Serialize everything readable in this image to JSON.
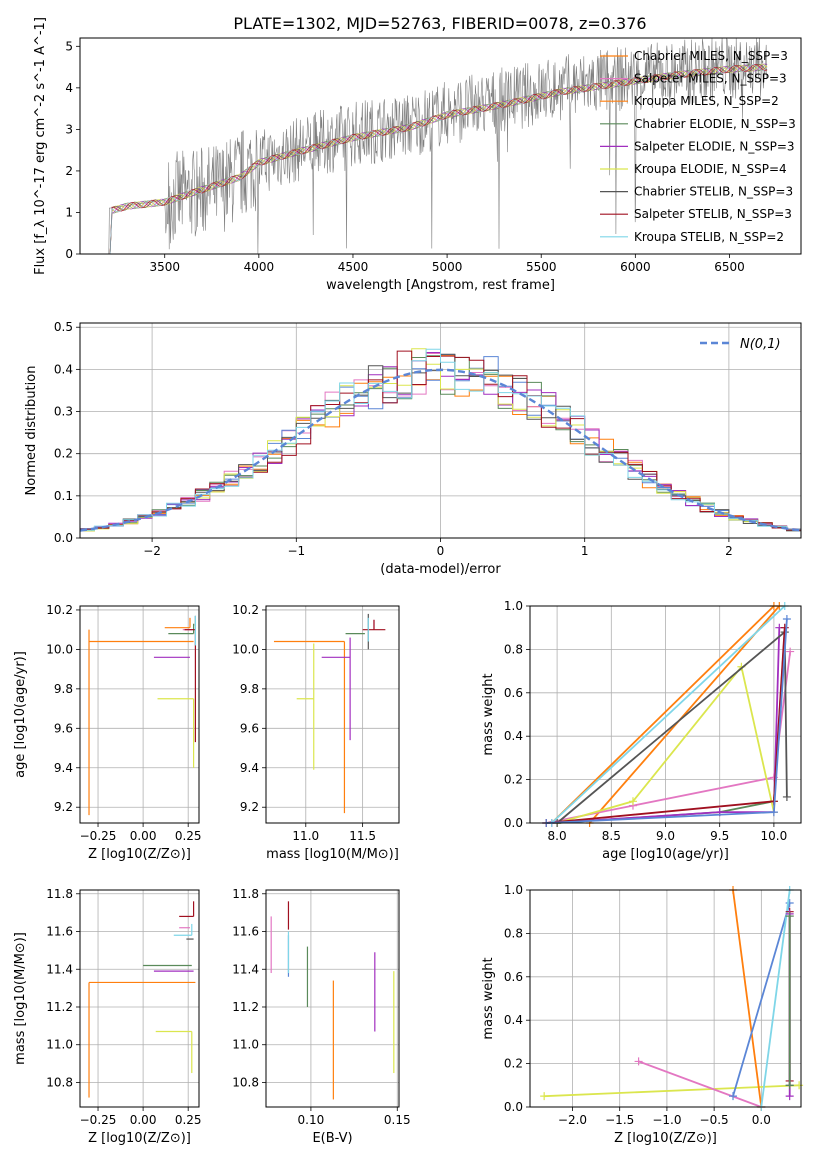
{
  "figure": {
    "title": "PLATE=1302, MJD=52763, FIBERID=0078, z=0.376"
  },
  "legend_series": [
    {
      "name": "Chabrier MILES, N_SSP=3",
      "color": "#ff7f0e"
    },
    {
      "name": "Salpeter MILES, N_SSP=3",
      "color": "#e377c2"
    },
    {
      "name": "Kroupa MILES, N_SSP=2",
      "color": "#ff7f0e"
    },
    {
      "name": "Chabrier ELODIE, N_SSP=3",
      "color": "#5a8a5a"
    },
    {
      "name": "Salpeter ELODIE, N_SSP=3",
      "color": "#a12fbf"
    },
    {
      "name": "Kroupa ELODIE, N_SSP=4",
      "color": "#dbe64e"
    },
    {
      "name": "Chabrier STELIB, N_SSP=3",
      "color": "#555555"
    },
    {
      "name": "Salpeter STELIB, N_SSP=3",
      "color": "#a01020"
    },
    {
      "name": "Kroupa STELIB, N_SSP=2",
      "color": "#7fd6e8"
    }
  ],
  "chart_data": [
    {
      "id": "spectrum",
      "type": "line",
      "title": "PLATE=1302, MJD=52763, FIBERID=0078, z=0.376",
      "xlabel": "wavelength [Angstrom, rest frame]",
      "ylabel": "Flux [f_λ 10^-17 erg cm^-2 s^-1 A^-1]",
      "xlim": [
        3050,
        6880
      ],
      "ylim": [
        0,
        5.2
      ],
      "xticks": [
        3500,
        4000,
        4500,
        5000,
        5500,
        6000,
        6500
      ],
      "yticks": [
        0,
        1,
        2,
        3,
        4,
        5
      ],
      "data_spectrum": {
        "x": [
          3200,
          3500,
          3800,
          4000,
          4200,
          4500,
          4800,
          5000,
          5300,
          5600,
          5900,
          6200,
          6500,
          6700
        ],
        "y": [
          1.1,
          1.3,
          1.6,
          2.2,
          2.5,
          2.9,
          3.1,
          3.4,
          3.7,
          4.0,
          4.2,
          4.35,
          4.5,
          4.55
        ]
      },
      "model": {
        "x": [
          3200,
          3220,
          3300,
          3400,
          3500,
          3600,
          3700,
          3800,
          3900,
          4000,
          4200,
          4500,
          4800,
          5000,
          5300,
          5600,
          5900,
          6200,
          6500,
          6700
        ],
        "y": [
          0.0,
          1.05,
          1.15,
          1.2,
          1.25,
          1.4,
          1.55,
          1.7,
          1.85,
          2.2,
          2.45,
          2.8,
          3.05,
          3.35,
          3.6,
          3.9,
          4.1,
          4.3,
          4.45,
          4.5
        ]
      }
    },
    {
      "id": "residuals",
      "type": "bar",
      "xlabel": "(data-model)/error",
      "ylabel": "Normed distribution",
      "xlim": [
        -2.5,
        2.5
      ],
      "ylim": [
        0,
        0.51
      ],
      "xticks": [
        -2,
        -1,
        0,
        1,
        2
      ],
      "xtick_labels": [
        "−2",
        "−1",
        "0",
        "1",
        "2"
      ],
      "yticks": [
        0,
        0.1,
        0.2,
        0.3,
        0.4,
        0.5
      ],
      "ytick_labels": [
        "0.0",
        "0.1",
        "0.2",
        "0.3",
        "0.4",
        "0.5"
      ],
      "legend": {
        "label": "N(0,1)",
        "placement": "upper right"
      },
      "bin_width": 0.1
    },
    {
      "id": "age_vs_Z",
      "type": "scatter",
      "xlabel": "Z [log10(Z/Z⊙)]",
      "ylabel": "age  [log10(age/yr)]",
      "xlim": [
        -0.35,
        0.31
      ],
      "ylim": [
        9.12,
        10.22
      ],
      "xticks": [
        -0.25,
        0.0,
        0.25
      ],
      "xtick_labels": [
        "−0.25",
        "0.00",
        "0.25"
      ],
      "yticks": [
        9.2,
        9.4,
        9.6,
        9.8,
        10.0,
        10.2
      ],
      "ytick_labels": [
        "9.2",
        "9.4",
        "9.6",
        "9.8",
        "10.0",
        "10.2"
      ],
      "points": [
        {
          "x": 0.26,
          "y": 10.11,
          "xerr": [
            0.14,
            0.0
          ],
          "yerr": [
            0.0,
            0.05
          ],
          "color": "#ff7f0e"
        },
        {
          "x": 0.22,
          "y": 10.1,
          "xerr": [
            0.0,
            0.05
          ],
          "yerr": [
            0.0,
            0.0
          ],
          "color": "#e377c2"
        },
        {
          "x": -0.3,
          "y": 10.04,
          "xerr": [
            0.0,
            0.58
          ],
          "yerr": [
            0.88,
            0.06
          ],
          "color": "#ff7f0e"
        },
        {
          "x": 0.28,
          "y": 10.08,
          "xerr": [
            0.14,
            0.0
          ],
          "yerr": [
            0.0,
            0.05
          ],
          "color": "#5a8a5a"
        },
        {
          "x": 0.26,
          "y": 9.96,
          "xerr": [
            0.2,
            0.0
          ],
          "yerr": [
            0.0,
            0.0
          ],
          "color": "#a12fbf"
        },
        {
          "x": 0.28,
          "y": 9.75,
          "xerr": [
            0.2,
            0.0
          ],
          "yerr": [
            0.35,
            0.0
          ],
          "color": "#dbe64e"
        },
        {
          "x": 0.29,
          "y": 10.12,
          "xerr": [
            0.0,
            0.0
          ],
          "yerr": [
            0.0,
            0.05
          ],
          "color": "#555555"
        },
        {
          "x": 0.29,
          "y": 10.1,
          "xerr": [
            0.06,
            0.0
          ],
          "yerr": [
            0.57,
            0.0
          ],
          "color": "#a01020"
        },
        {
          "x": 0.29,
          "y": 10.1,
          "xerr": [
            0.0,
            0.0
          ],
          "yerr": [
            0.08,
            0.07
          ],
          "color": "#7fd6e8"
        }
      ]
    },
    {
      "id": "age_vs_mass",
      "type": "scatter",
      "xlabel": "mass [log10(M/M⊙)]",
      "ylabel": "",
      "xlim": [
        10.65,
        11.82
      ],
      "ylim": [
        9.12,
        10.22
      ],
      "xticks": [
        11.0,
        11.5
      ],
      "xtick_labels": [
        "11.0",
        "11.5"
      ],
      "yticks": [
        9.2,
        9.4,
        9.6,
        9.8,
        10.0,
        10.2
      ],
      "ytick_labels": [
        "9.2",
        "9.4",
        "9.6",
        "9.8",
        "10.0",
        "10.2"
      ],
      "points": [
        {
          "x": 11.34,
          "y": 10.04,
          "xerr": [
            0.62,
            0.0
          ],
          "yerr": [
            0.87,
            0.0
          ],
          "color": "#ff7f0e"
        },
        {
          "x": 11.6,
          "y": 10.1,
          "xerr": [
            0.0,
            0.0
          ],
          "yerr": [
            0.0,
            0.05
          ],
          "color": "#e377c2"
        },
        {
          "x": 11.42,
          "y": 10.08,
          "xerr": [
            0.07,
            0.1
          ],
          "yerr": [
            0.0,
            0.0
          ],
          "color": "#5a8a5a"
        },
        {
          "x": 11.39,
          "y": 9.96,
          "xerr": [
            0.25,
            0.0
          ],
          "yerr": [
            0.42,
            0.1
          ],
          "color": "#a12fbf"
        },
        {
          "x": 11.07,
          "y": 9.75,
          "xerr": [
            0.15,
            0.0
          ],
          "yerr": [
            0.36,
            0.28
          ],
          "color": "#dbe64e"
        },
        {
          "x": 11.55,
          "y": 10.1,
          "xerr": [
            0.0,
            0.0
          ],
          "yerr": [
            0.1,
            0.08
          ],
          "color": "#555555"
        },
        {
          "x": 11.6,
          "y": 10.1,
          "xerr": [
            0.1,
            0.1
          ],
          "yerr": [
            0.0,
            0.05
          ],
          "color": "#a01020"
        },
        {
          "x": 11.55,
          "y": 10.11,
          "xerr": [
            0.0,
            0.0
          ],
          "yerr": [
            0.07,
            0.05
          ],
          "color": "#7fd6e8"
        }
      ]
    },
    {
      "id": "weight_vs_age",
      "type": "line",
      "xlabel": "age  [log10(age/yr)]",
      "ylabel": "mass weight",
      "xlim": [
        7.75,
        10.25
      ],
      "ylim": [
        0,
        1.0
      ],
      "xticks": [
        8.0,
        8.5,
        9.0,
        9.5,
        10.0
      ],
      "xtick_labels": [
        "8.0",
        "8.5",
        "9.0",
        "9.5",
        "10.0"
      ],
      "yticks": [
        0.0,
        0.2,
        0.4,
        0.6,
        0.8,
        1.0
      ],
      "ytick_labels": [
        "0.0",
        "0.2",
        "0.4",
        "0.6",
        "0.8",
        "1.0"
      ],
      "series": [
        {
          "color": "#ff7f0e",
          "x": [
            7.95,
            10.0
          ],
          "y": [
            0.0,
            1.0
          ]
        },
        {
          "color": "#ff7f0e",
          "x": [
            8.3,
            10.05
          ],
          "y": [
            0.0,
            1.0
          ]
        },
        {
          "color": "#e377c2",
          "x": [
            7.9,
            8.7,
            10.0,
            10.15
          ],
          "y": [
            0.0,
            0.08,
            0.21,
            0.79
          ]
        },
        {
          "color": "#5a8a5a",
          "x": [
            8.0,
            9.5,
            10.0,
            10.1
          ],
          "y": [
            0.0,
            0.05,
            0.1,
            0.88
          ]
        },
        {
          "color": "#a12fbf",
          "x": [
            7.95,
            9.5,
            10.0,
            10.05
          ],
          "y": [
            0.0,
            0.05,
            0.05,
            0.9
          ]
        },
        {
          "color": "#dbe64e",
          "x": [
            8.0,
            8.7,
            9.7,
            10.0
          ],
          "y": [
            0.0,
            0.1,
            0.72,
            0.05
          ]
        },
        {
          "color": "#555555",
          "x": [
            8.0,
            10.1,
            10.12
          ],
          "y": [
            0.0,
            0.88,
            0.12
          ]
        },
        {
          "color": "#a01020",
          "x": [
            7.9,
            10.0,
            10.1
          ],
          "y": [
            0.0,
            0.1,
            0.9
          ]
        },
        {
          "color": "#7fd6e8",
          "x": [
            7.95,
            10.1
          ],
          "y": [
            0.0,
            1.0
          ]
        },
        {
          "color": "#5b86d6",
          "x": [
            7.9,
            10.0,
            10.12
          ],
          "y": [
            0.0,
            0.05,
            0.94
          ]
        }
      ]
    },
    {
      "id": "mass_vs_Z",
      "type": "scatter",
      "xlabel": "Z [log10(Z/Z⊙)]",
      "ylabel": "mass [log10(M/M⊙)]",
      "xlim": [
        -0.35,
        0.31
      ],
      "ylim": [
        10.67,
        11.82
      ],
      "xticks": [
        -0.25,
        0.0,
        0.25
      ],
      "xtick_labels": [
        "−0.25",
        "0.00",
        "0.25"
      ],
      "yticks": [
        10.8,
        11.0,
        11.2,
        11.4,
        11.6,
        11.8
      ],
      "ytick_labels": [
        "10.8",
        "11.0",
        "11.2",
        "11.4",
        "11.6",
        "11.8"
      ],
      "points": [
        {
          "x": 0.28,
          "y": 11.68,
          "xerr": [
            0.08,
            0.0
          ],
          "yerr": [
            0.0,
            0.08
          ],
          "color": "#a01020"
        },
        {
          "x": 0.26,
          "y": 11.62,
          "xerr": [
            0.06,
            0.0
          ],
          "yerr": [
            0.0,
            0.0
          ],
          "color": "#e377c2"
        },
        {
          "x": 0.27,
          "y": 11.58,
          "xerr": [
            0.1,
            0.0
          ],
          "yerr": [
            0.0,
            0.06
          ],
          "color": "#7fd6e8"
        },
        {
          "x": 0.28,
          "y": 11.56,
          "xerr": [
            0.04,
            0.0
          ],
          "yerr": [
            0.0,
            0.0
          ],
          "color": "#555555"
        },
        {
          "x": 0.27,
          "y": 11.42,
          "xerr": [
            0.27,
            0.0
          ],
          "yerr": [
            0.0,
            0.0
          ],
          "color": "#5a8a5a"
        },
        {
          "x": 0.28,
          "y": 11.39,
          "xerr": [
            0.22,
            0.0
          ],
          "yerr": [
            0.0,
            0.0
          ],
          "color": "#a12fbf"
        },
        {
          "x": -0.3,
          "y": 11.33,
          "xerr": [
            0.0,
            0.59
          ],
          "yerr": [
            0.61,
            0.0
          ],
          "color": "#ff7f0e"
        },
        {
          "x": 0.27,
          "y": 11.07,
          "xerr": [
            0.2,
            0.0
          ],
          "yerr": [
            0.22,
            0.0
          ],
          "color": "#dbe64e"
        }
      ]
    },
    {
      "id": "mass_vs_ebv",
      "type": "scatter",
      "xlabel": "E(B-V)",
      "ylabel": "",
      "xlim": [
        0.074,
        0.151
      ],
      "ylim": [
        10.67,
        11.82
      ],
      "xticks": [
        0.1,
        0.15
      ],
      "xtick_labels": [
        "0.10",
        "0.15"
      ],
      "yticks": [
        10.8,
        11.0,
        11.2,
        11.4,
        11.6,
        11.8
      ],
      "ytick_labels": [
        "10.8",
        "11.0",
        "11.2",
        "11.4",
        "11.6",
        "11.8"
      ],
      "points": [
        {
          "x": 0.077,
          "y": 11.53,
          "xerr": [
            0.0,
            0.0
          ],
          "yerr": [
            0.15,
            0.15
          ],
          "color": "#e377c2"
        },
        {
          "x": 0.087,
          "y": 11.67,
          "xerr": [
            0.0,
            0.0
          ],
          "yerr": [
            0.06,
            0.09
          ],
          "color": "#a01020"
        },
        {
          "x": 0.087,
          "y": 11.52,
          "xerr": [
            0.0,
            0.0
          ],
          "yerr": [
            0.16,
            0.06
          ],
          "color": "#5b86d6"
        },
        {
          "x": 0.087,
          "y": 11.5,
          "xerr": [
            0.0,
            0.0
          ],
          "yerr": [
            0.12,
            0.1
          ],
          "color": "#7fd6e8"
        },
        {
          "x": 0.098,
          "y": 11.36,
          "xerr": [
            0.0,
            0.0
          ],
          "yerr": [
            0.16,
            0.16
          ],
          "color": "#5a8a5a"
        },
        {
          "x": 0.113,
          "y": 11.02,
          "xerr": [
            0.0,
            0.0
          ],
          "yerr": [
            0.31,
            0.32
          ],
          "color": "#ff7f0e"
        },
        {
          "x": 0.137,
          "y": 11.28,
          "xerr": [
            0.0,
            0.0
          ],
          "yerr": [
            0.21,
            0.21
          ],
          "color": "#a12fbf"
        },
        {
          "x": 0.148,
          "y": 11.12,
          "xerr": [
            0.0,
            0.0
          ],
          "yerr": [
            0.27,
            0.27
          ],
          "color": "#dbe64e"
        }
      ]
    },
    {
      "id": "weight_vs_Z",
      "type": "line",
      "xlabel": "Z [log10(Z/Z⊙)]",
      "ylabel": "mass weight",
      "xlim": [
        -2.45,
        0.42
      ],
      "ylim": [
        0,
        1.0
      ],
      "xticks": [
        -2.0,
        -1.5,
        -1.0,
        -0.5,
        0.0
      ],
      "xtick_labels": [
        "−2.0",
        "−1.5",
        "−1.0",
        "−0.5",
        "0.0"
      ],
      "yticks": [
        0.0,
        0.2,
        0.4,
        0.6,
        0.8,
        1.0
      ],
      "ytick_labels": [
        "0.0",
        "0.2",
        "0.4",
        "0.6",
        "0.8",
        "1.0"
      ],
      "series": [
        {
          "color": "#dbe64e",
          "x": [
            -2.3,
            0.4
          ],
          "y": [
            0.05,
            0.1
          ]
        },
        {
          "color": "#e377c2",
          "x": [
            -1.3,
            0.0
          ],
          "y": [
            0.21,
            0.0
          ]
        },
        {
          "color": "#ff7f0e",
          "x": [
            -0.3,
            0.0
          ],
          "y": [
            1.0,
            0.0
          ]
        },
        {
          "color": "#5b86d6",
          "x": [
            -0.3,
            0.3
          ],
          "y": [
            0.05,
            0.94
          ]
        },
        {
          "color": "#7fd6e8",
          "x": [
            0.0,
            0.3
          ],
          "y": [
            0.0,
            1.0
          ]
        },
        {
          "color": "#555555",
          "x": [
            0.3,
            0.3
          ],
          "y": [
            0.1,
            0.88
          ]
        },
        {
          "color": "#a01020",
          "x": [
            0.3,
            0.3
          ],
          "y": [
            0.12,
            0.9
          ]
        },
        {
          "color": "#a12fbf",
          "x": [
            0.3,
            0.3
          ],
          "y": [
            0.05,
            0.89
          ]
        },
        {
          "color": "#5a8a5a",
          "x": [
            0.3,
            0.3
          ],
          "y": [
            0.1,
            0.88
          ]
        }
      ]
    }
  ]
}
